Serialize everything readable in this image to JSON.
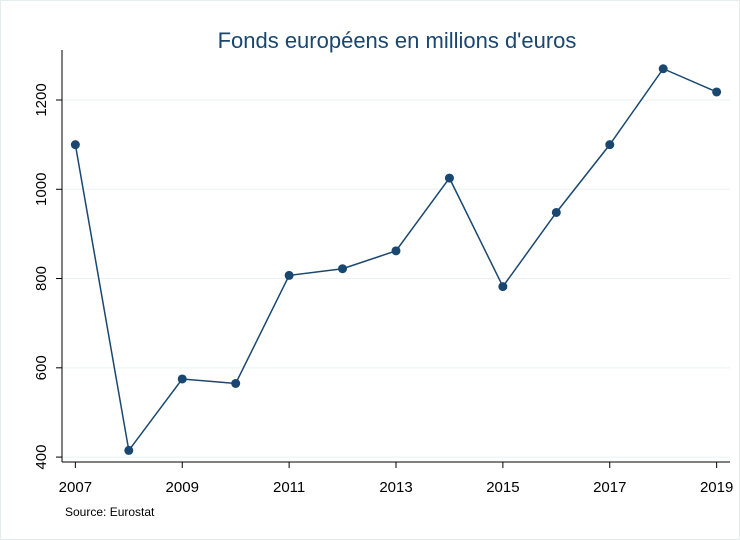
{
  "chart_data": {
    "type": "line",
    "title": "Fonds européens en millions d'euros",
    "note": "Source: Eurostat",
    "x": [
      2007,
      2008,
      2009,
      2010,
      2011,
      2012,
      2013,
      2014,
      2015,
      2016,
      2017,
      2018,
      2019
    ],
    "series": [
      {
        "name": "Fonds européens",
        "color": "#1a476f",
        "values": [
          1100,
          415,
          575,
          565,
          807,
          822,
          862,
          1025,
          782,
          948,
          1100,
          1270,
          1218
        ]
      }
    ],
    "xlim": [
      2006.75,
      2019.25
    ],
    "xticks": [
      2007,
      2009,
      2011,
      2013,
      2015,
      2017,
      2019
    ],
    "ylim": [
      389,
      1312
    ],
    "yticks": [
      400,
      600,
      800,
      1000,
      1200
    ],
    "grid": true
  }
}
